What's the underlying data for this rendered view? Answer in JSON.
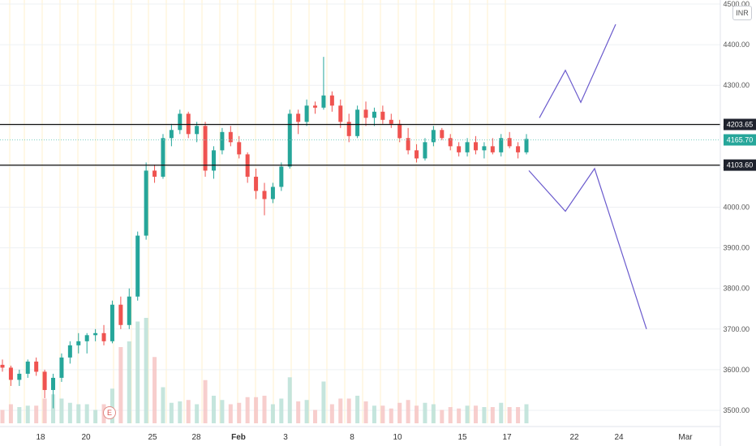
{
  "currency": "INR",
  "event_marker": "E",
  "colors": {
    "up": "#26a69a",
    "down": "#ef5350",
    "vol_up": "#b7dfd4",
    "vol_down": "#f5c2c0",
    "grid": "#eef0f3",
    "session": "#fff1cc",
    "hline": "#111111",
    "price_line": "#7fd1c4",
    "projection": "#6a5acd",
    "badge_dark": "#1e222d",
    "badge_price": "#26a69a"
  },
  "price_axis": {
    "ticks": [
      "4500.00",
      "4400.00",
      "4300.00",
      "4200.00",
      "4100.00",
      "4000.00",
      "3900.00",
      "3800.00",
      "3700.00",
      "3600.00",
      "3500.00"
    ],
    "tick_values": [
      4500,
      4400,
      4300,
      4200,
      4100,
      4000,
      3900,
      3800,
      3700,
      3600,
      3500
    ]
  },
  "date_axis": {
    "labels": [
      "18",
      "20",
      "25",
      "28",
      "Feb",
      "3",
      "8",
      "10",
      "15",
      "17",
      "22",
      "24",
      "Mar"
    ]
  },
  "levels": [
    {
      "value": 4203.65,
      "label": "4203.65",
      "style": "dark"
    },
    {
      "value": 4165.7,
      "label": "4165.70",
      "style": "price"
    },
    {
      "value": 4103.6,
      "label": "4103.60",
      "style": "dark"
    }
  ],
  "chart_data": {
    "type": "candlestick",
    "y_range": [
      3480,
      4520
    ],
    "x_labels": [
      "18",
      "20",
      "25",
      "28",
      "Feb",
      "3",
      "8",
      "10",
      "15",
      "17",
      "22",
      "24",
      "Mar"
    ],
    "horizontal_levels": [
      4203.65,
      4103.6
    ],
    "last_price": 4165.7,
    "ohlc_approx": [
      [
        3612,
        3625,
        3595,
        3605
      ],
      [
        3605,
        3610,
        3560,
        3575
      ],
      [
        3575,
        3600,
        3560,
        3590
      ],
      [
        3590,
        3625,
        3580,
        3620
      ],
      [
        3620,
        3630,
        3585,
        3595
      ],
      [
        3595,
        3600,
        3530,
        3550
      ],
      [
        3550,
        3590,
        3505,
        3580
      ],
      [
        3580,
        3640,
        3570,
        3630
      ],
      [
        3630,
        3670,
        3615,
        3660
      ],
      [
        3660,
        3690,
        3640,
        3670
      ],
      [
        3670,
        3690,
        3640,
        3685
      ],
      [
        3685,
        3700,
        3670,
        3690
      ],
      [
        3690,
        3710,
        3660,
        3670
      ],
      [
        3670,
        3770,
        3665,
        3760
      ],
      [
        3760,
        3780,
        3700,
        3710
      ],
      [
        3710,
        3800,
        3700,
        3780
      ],
      [
        3780,
        3940,
        3770,
        3930
      ],
      [
        3930,
        4110,
        3920,
        4090
      ],
      [
        4090,
        4105,
        4060,
        4075
      ],
      [
        4075,
        4180,
        4070,
        4170
      ],
      [
        4170,
        4205,
        4150,
        4190
      ],
      [
        4190,
        4240,
        4180,
        4230
      ],
      [
        4230,
        4235,
        4170,
        4180
      ],
      [
        4180,
        4210,
        4160,
        4200
      ],
      [
        4200,
        4210,
        4075,
        4090
      ],
      [
        4090,
        4150,
        4070,
        4140
      ],
      [
        4140,
        4195,
        4130,
        4185
      ],
      [
        4185,
        4200,
        4150,
        4160
      ],
      [
        4160,
        4175,
        4120,
        4130
      ],
      [
        4130,
        4135,
        4060,
        4075
      ],
      [
        4075,
        4095,
        4020,
        4040
      ],
      [
        4040,
        4060,
        3980,
        4020
      ],
      [
        4020,
        4060,
        4010,
        4050
      ],
      [
        4050,
        4110,
        4040,
        4100
      ],
      [
        4100,
        4240,
        4095,
        4230
      ],
      [
        4230,
        4240,
        4180,
        4210
      ],
      [
        4210,
        4265,
        4200,
        4250
      ],
      [
        4250,
        4260,
        4230,
        4245
      ],
      [
        4245,
        4370,
        4240,
        4275
      ],
      [
        4275,
        4285,
        4235,
        4250
      ],
      [
        4250,
        4265,
        4195,
        4210
      ],
      [
        4210,
        4230,
        4160,
        4175
      ],
      [
        4175,
        4250,
        4170,
        4240
      ],
      [
        4240,
        4260,
        4200,
        4220
      ],
      [
        4220,
        4245,
        4200,
        4235
      ],
      [
        4235,
        4250,
        4205,
        4215
      ],
      [
        4215,
        4230,
        4195,
        4205
      ],
      [
        4205,
        4215,
        4160,
        4170
      ],
      [
        4170,
        4195,
        4130,
        4140
      ],
      [
        4140,
        4155,
        4110,
        4120
      ],
      [
        4120,
        4170,
        4115,
        4160
      ],
      [
        4160,
        4200,
        4150,
        4190
      ],
      [
        4190,
        4195,
        4165,
        4170
      ],
      [
        4170,
        4180,
        4140,
        4150
      ],
      [
        4150,
        4160,
        4125,
        4135
      ],
      [
        4135,
        4170,
        4125,
        4160
      ],
      [
        4160,
        4175,
        4130,
        4140
      ],
      [
        4140,
        4160,
        4120,
        4150
      ],
      [
        4150,
        4170,
        4130,
        4135
      ],
      [
        4135,
        4180,
        4125,
        4170
      ],
      [
        4170,
        4185,
        4145,
        4150
      ],
      [
        4150,
        4160,
        4120,
        4135
      ],
      [
        4135,
        4180,
        4130,
        4168
      ]
    ]
  }
}
